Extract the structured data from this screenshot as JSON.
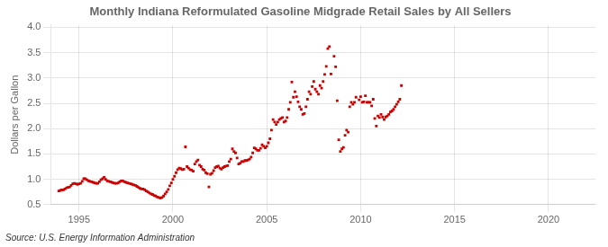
{
  "chart_data": {
    "type": "scatter",
    "title": "Monthly Indiana Reformulated Gasoline Midgrade Retail Sales by All Sellers",
    "y_label": "Dollars per Gallon",
    "annotations": [
      "Source: U.S. Energy Information Administration"
    ],
    "color": "#CC0000",
    "marker": "square",
    "grid": true,
    "xlim": [
      1993.5,
      2022.5
    ],
    "ylim": [
      0.5,
      4.05
    ],
    "xticks": [
      1995,
      2000,
      2005,
      2010,
      2015,
      2020
    ],
    "yticks": [
      0.5,
      {
        "value": 1,
        "label": "1.0"
      },
      1.5,
      {
        "value": 2,
        "label": "2.0"
      },
      2.5,
      {
        "value": 3,
        "label": "3.0"
      },
      3.5,
      {
        "value": 4,
        "label": "4.0"
      }
    ],
    "x": [
      1993.917,
      1994.0,
      1994.083,
      1994.167,
      1994.25,
      1994.333,
      1994.417,
      1994.5,
      1994.583,
      1994.667,
      1994.75,
      1994.833,
      1994.917,
      1995.0,
      1995.083,
      1995.167,
      1995.25,
      1995.333,
      1995.417,
      1995.5,
      1995.583,
      1995.667,
      1995.75,
      1995.833,
      1995.917,
      1996.0,
      1996.083,
      1996.167,
      1996.25,
      1996.333,
      1996.417,
      1996.5,
      1996.583,
      1996.667,
      1996.75,
      1996.833,
      1996.917,
      1997.0,
      1997.083,
      1997.167,
      1997.25,
      1997.333,
      1997.417,
      1997.5,
      1997.583,
      1997.667,
      1997.75,
      1997.833,
      1997.917,
      1998.0,
      1998.083,
      1998.167,
      1998.25,
      1998.333,
      1998.417,
      1998.5,
      1998.583,
      1998.667,
      1998.75,
      1998.833,
      1998.917,
      1999.0,
      1999.083,
      1999.167,
      1999.25,
      1999.333,
      1999.417,
      1999.5,
      1999.583,
      1999.667,
      1999.75,
      1999.833,
      1999.917,
      2000.0,
      2000.083,
      2000.167,
      2000.25,
      2000.333,
      2000.417,
      2000.5,
      2000.583,
      2000.667,
      2000.75,
      2000.833,
      2000.917,
      2001.0,
      2001.083,
      2001.167,
      2001.25,
      2001.333,
      2001.417,
      2001.5,
      2001.583,
      2001.667,
      2001.75,
      2001.833,
      2001.917,
      2002.0,
      2002.083,
      2002.167,
      2002.25,
      2002.333,
      2002.417,
      2002.5,
      2002.583,
      2002.667,
      2002.75,
      2002.833,
      2002.917,
      2003.0,
      2003.083,
      2003.167,
      2003.25,
      2003.333,
      2003.417,
      2003.5,
      2003.583,
      2003.667,
      2003.75,
      2003.833,
      2003.917,
      2004.0,
      2004.083,
      2004.167,
      2004.25,
      2004.333,
      2004.417,
      2004.5,
      2004.583,
      2004.667,
      2004.75,
      2004.833,
      2004.917,
      2005.0,
      2005.083,
      2005.167,
      2005.25,
      2005.333,
      2005.417,
      2005.5,
      2005.583,
      2005.667,
      2005.75,
      2005.833,
      2005.917,
      2006.0,
      2006.083,
      2006.167,
      2006.25,
      2006.333,
      2006.417,
      2006.5,
      2006.583,
      2006.667,
      2006.75,
      2006.833,
      2006.917,
      2007.0,
      2007.083,
      2007.167,
      2007.25,
      2007.333,
      2007.417,
      2007.5,
      2007.583,
      2007.667,
      2007.75,
      2007.833,
      2007.917,
      2008.0,
      2008.083,
      2008.167,
      2008.25,
      2008.333,
      2008.417,
      2008.583,
      2008.667,
      2008.75,
      2008.833,
      2008.917,
      2009.0,
      2009.083,
      2009.167,
      2009.25,
      2009.333,
      2009.417,
      2009.5,
      2009.583,
      2009.667,
      2009.75,
      2009.917,
      2010.0,
      2010.083,
      2010.167,
      2010.25,
      2010.333,
      2010.417,
      2010.5,
      2010.583,
      2010.667,
      2010.75,
      2010.833,
      2010.917,
      2011.0,
      2011.083,
      2011.167,
      2011.25,
      2011.333,
      2011.417,
      2011.5,
      2011.583,
      2011.667,
      2011.75,
      2011.833,
      2011.917,
      2012.0,
      2012.083,
      2012.167
    ],
    "values": [
      0.77,
      0.78,
      0.79,
      0.79,
      0.81,
      0.83,
      0.84,
      0.85,
      0.88,
      0.91,
      0.92,
      0.91,
      0.9,
      0.91,
      0.92,
      0.96,
      1.01,
      1.01,
      0.99,
      0.97,
      0.96,
      0.95,
      0.94,
      0.93,
      0.92,
      0.92,
      0.95,
      0.99,
      1.01,
      1.04,
      1.0,
      0.97,
      0.96,
      0.95,
      0.94,
      0.93,
      0.92,
      0.92,
      0.93,
      0.95,
      0.97,
      0.97,
      0.95,
      0.94,
      0.93,
      0.92,
      0.91,
      0.9,
      0.89,
      0.88,
      0.86,
      0.84,
      0.82,
      0.81,
      0.81,
      0.79,
      0.77,
      0.75,
      0.73,
      0.71,
      0.7,
      0.68,
      0.67,
      0.65,
      0.64,
      0.63,
      0.64,
      0.67,
      0.71,
      0.75,
      0.8,
      0.87,
      0.93,
      1.0,
      1.06,
      1.13,
      1.19,
      1.22,
      1.21,
      1.19,
      1.2,
      1.64,
      1.25,
      1.22,
      1.19,
      1.18,
      1.16,
      1.3,
      1.35,
      1.38,
      1.28,
      1.25,
      1.2,
      1.18,
      1.13,
      1.11,
      0.85,
      1.1,
      1.12,
      1.17,
      1.23,
      1.25,
      1.26,
      1.22,
      1.2,
      1.23,
      1.25,
      1.26,
      1.27,
      1.35,
      1.4,
      1.6,
      1.55,
      1.52,
      1.42,
      1.3,
      1.32,
      1.35,
      1.35,
      1.37,
      1.37,
      1.38,
      1.4,
      1.44,
      1.52,
      1.62,
      1.6,
      1.57,
      1.57,
      1.61,
      1.68,
      1.65,
      1.62,
      1.65,
      1.72,
      1.8,
      1.97,
      2.18,
      2.13,
      2.08,
      2.13,
      2.18,
      2.2,
      2.22,
      2.13,
      2.15,
      2.22,
      2.38,
      2.52,
      2.92,
      2.62,
      2.73,
      2.63,
      2.53,
      2.43,
      2.38,
      2.28,
      2.3,
      2.43,
      2.58,
      2.73,
      2.68,
      2.83,
      2.93,
      2.78,
      2.73,
      2.68,
      2.85,
      2.8,
      2.93,
      3.07,
      3.23,
      3.58,
      3.62,
      3.08,
      3.43,
      3.22,
      2.55,
      1.78,
      1.55,
      1.6,
      1.63,
      1.87,
      1.97,
      1.93,
      2.43,
      2.52,
      2.48,
      2.52,
      2.62,
      2.57,
      2.63,
      2.52,
      2.53,
      2.65,
      2.52,
      2.52,
      2.52,
      2.45,
      2.58,
      2.2,
      2.05,
      2.25,
      2.22,
      2.28,
      2.23,
      2.18,
      2.23,
      2.25,
      2.28,
      2.33,
      2.35,
      2.38,
      2.43,
      2.48,
      2.53,
      2.58,
      2.85
    ]
  }
}
